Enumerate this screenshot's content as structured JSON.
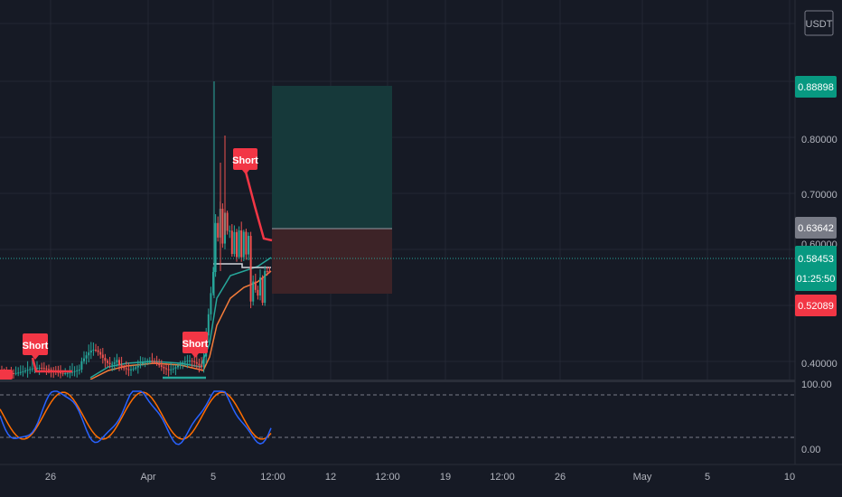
{
  "chart_data": {
    "type": "candlestick",
    "currency": "USDT",
    "y_ticks": [
      "0.80000",
      "0.70000",
      "0.40000"
    ],
    "y_partial_tick": "0.60000",
    "price_tags": {
      "target": "0.88898",
      "entry": "0.63642",
      "current": "0.58453",
      "countdown": "01:25:50",
      "stop": "0.52089"
    },
    "x_ticks": [
      "26",
      "Apr",
      "5",
      "12:00",
      "12",
      "12:00",
      "19",
      "12:00",
      "26",
      "May",
      "5",
      "10"
    ],
    "signals": [
      "Short",
      "Short",
      "Short"
    ],
    "oscillator": {
      "upper": "100.00",
      "lower": "0.00"
    },
    "colors": {
      "background": "#161a25",
      "up": "#26a69a",
      "down": "#ef5350",
      "signal": "#f23645",
      "profit_zone": "#16393a",
      "loss_zone": "#3d2327",
      "stoch_k": "#2962ff",
      "stoch_d": "#ff6d00"
    }
  }
}
